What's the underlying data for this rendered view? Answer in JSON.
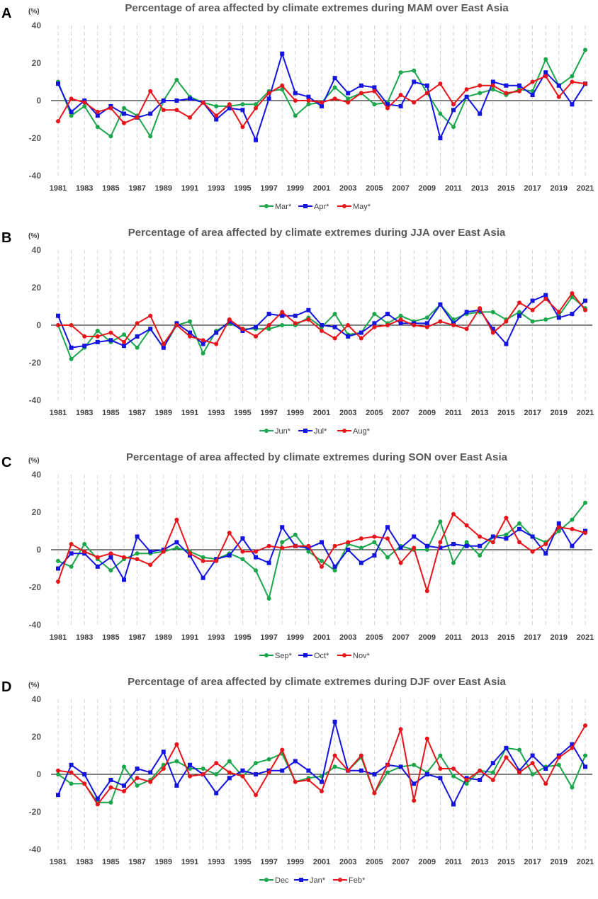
{
  "figure": {
    "years": [
      1981,
      1982,
      1983,
      1984,
      1985,
      1986,
      1987,
      1988,
      1989,
      1990,
      1991,
      1992,
      1993,
      1994,
      1995,
      1996,
      1997,
      1998,
      1999,
      2000,
      2001,
      2002,
      2003,
      2004,
      2005,
      2006,
      2007,
      2008,
      2009,
      2010,
      2011,
      2012,
      2013,
      2014,
      2015,
      2016,
      2017,
      2018,
      2019,
      2020,
      2021
    ],
    "x_tick_labels": [
      "1981",
      "1983",
      "1985",
      "1987",
      "1989",
      "1991",
      "1993",
      "1995",
      "1997",
      "1999",
      "2001",
      "2003",
      "2005",
      "2007",
      "2009",
      "2011",
      "2013",
      "2015",
      "2017",
      "2019",
      "2021"
    ],
    "y_tick_labels": [
      "40",
      "20",
      "0",
      "-20",
      "-40"
    ],
    "y_unit": "(%)",
    "ylim": [
      -40,
      40
    ]
  },
  "colors": {
    "green": "#1aa64b",
    "blue": "#1414e0",
    "red": "#e8141a",
    "axis": "#000000",
    "text": "#595959"
  },
  "chart_data": [
    {
      "type": "line",
      "panel": "A",
      "title": "Percentage of area affected by climate extremes during MAM over East Asia",
      "ylabel": "(%)",
      "xlabel": "",
      "ylim": [
        -40,
        40
      ],
      "series": [
        {
          "name": "Mar",
          "marker": "*",
          "color": "#1aa64b",
          "shape": "circle",
          "values": [
            10,
            -8,
            -3,
            -14,
            -19,
            -4,
            -8,
            -19,
            0,
            11,
            2,
            -1,
            -3,
            -3,
            -2,
            -2,
            5,
            6,
            -8,
            -2,
            -1,
            7,
            1,
            4,
            -2,
            -1,
            15,
            16,
            4,
            -7,
            -14,
            2,
            4,
            6,
            3,
            6,
            5,
            22,
            8,
            13,
            27
          ]
        },
        {
          "name": "Apr",
          "marker": "*",
          "color": "#1414e0",
          "shape": "square",
          "values": [
            9,
            -6,
            0,
            -8,
            -3,
            -7,
            -9,
            -7,
            0,
            0,
            1,
            -1,
            -10,
            -4,
            -5,
            -21,
            1,
            25,
            4,
            2,
            -3,
            12,
            4,
            8,
            7,
            -2,
            -3,
            10,
            8,
            -20,
            -5,
            2,
            -7,
            10,
            8,
            8,
            3,
            15,
            8,
            -2,
            9
          ]
        },
        {
          "name": "May",
          "marker": "*",
          "color": "#e8141a",
          "shape": "circle",
          "values": [
            -11,
            1,
            -1,
            -6,
            -4,
            -12,
            -9,
            5,
            -5,
            -5,
            -9,
            -1,
            -8,
            -2,
            -14,
            -4,
            4,
            8,
            0,
            0,
            -1,
            1,
            -1,
            4,
            5,
            -4,
            3,
            -1,
            4,
            9,
            -2,
            6,
            8,
            8,
            4,
            5,
            10,
            13,
            2,
            10,
            9
          ]
        }
      ]
    },
    {
      "type": "line",
      "panel": "B",
      "title": "Percentage of area affected by climate extremes during JJA over East Asia",
      "ylabel": "(%)",
      "xlabel": "",
      "ylim": [
        -40,
        40
      ],
      "series": [
        {
          "name": "Jun",
          "marker": "*",
          "color": "#1aa64b",
          "shape": "circle",
          "values": [
            0,
            -18,
            -12,
            -3,
            -9,
            -5,
            -12,
            -2,
            -12,
            0,
            2,
            -15,
            -3,
            1,
            -2,
            -2,
            -2,
            0,
            0,
            4,
            -1,
            6,
            -5,
            -4,
            6,
            1,
            5,
            2,
            4,
            11,
            3,
            6,
            7,
            7,
            3,
            7,
            2,
            3,
            5,
            15,
            9
          ]
        },
        {
          "name": "Jul",
          "marker": "*",
          "color": "#1414e0",
          "shape": "square",
          "values": [
            5,
            -12,
            -11,
            -9,
            -8,
            -11,
            -6,
            -2,
            -12,
            1,
            -4,
            -10,
            -4,
            2,
            -3,
            -1,
            6,
            5,
            5,
            8,
            0,
            -1,
            -6,
            -4,
            1,
            6,
            1,
            1,
            1,
            11,
            1,
            7,
            8,
            -2,
            -10,
            5,
            13,
            16,
            4,
            6,
            13
          ]
        },
        {
          "name": "Aug",
          "marker": "*",
          "color": "#e8141a",
          "shape": "circle",
          "values": [
            0,
            0,
            -6,
            -6,
            -4,
            -9,
            1,
            5,
            -10,
            0,
            -6,
            -8,
            -10,
            3,
            -2,
            -6,
            0,
            7,
            1,
            3,
            -3,
            -7,
            0,
            -7,
            -1,
            0,
            3,
            0,
            -1,
            2,
            0,
            -2,
            9,
            -4,
            2,
            12,
            8,
            14,
            7,
            17,
            8
          ]
        }
      ]
    },
    {
      "type": "line",
      "panel": "C",
      "title": "Percentage of area affected by climate extremes during SON over East Asia",
      "ylabel": "(%)",
      "xlabel": "",
      "ylim": [
        -40,
        40
      ],
      "series": [
        {
          "name": "Sep",
          "marker": "*",
          "color": "#1aa64b",
          "shape": "circle",
          "values": [
            -6,
            -9,
            3,
            -5,
            -11,
            -5,
            -2,
            -2,
            -1,
            1,
            -1,
            -4,
            -5,
            -2,
            -5,
            -11,
            -26,
            4,
            8,
            -1,
            -6,
            -11,
            3,
            1,
            4,
            -4,
            2,
            0,
            0,
            15,
            -7,
            4,
            -3,
            7,
            8,
            14,
            7,
            4,
            10,
            16,
            25
          ]
        },
        {
          "name": "Oct",
          "marker": "*",
          "color": "#1414e0",
          "shape": "square",
          "values": [
            -10,
            -2,
            -2,
            -9,
            -4,
            -16,
            7,
            -1,
            0,
            4,
            -3,
            -15,
            -5,
            -3,
            6,
            -4,
            -7,
            12,
            2,
            1,
            4,
            -9,
            0,
            -7,
            -3,
            12,
            1,
            7,
            2,
            1,
            3,
            2,
            2,
            7,
            6,
            11,
            7,
            -2,
            14,
            2,
            10
          ]
        },
        {
          "name": "Nov",
          "marker": "*",
          "color": "#e8141a",
          "shape": "circle",
          "values": [
            -17,
            3,
            -1,
            -4,
            -2,
            -4,
            -5,
            -8,
            -1,
            16,
            -2,
            -6,
            -6,
            9,
            -1,
            -1,
            2,
            1,
            2,
            2,
            -9,
            2,
            4,
            6,
            7,
            6,
            -7,
            1,
            -22,
            4,
            19,
            13,
            7,
            4,
            17,
            4,
            -1,
            3,
            12,
            11,
            9
          ]
        }
      ]
    },
    {
      "type": "line",
      "panel": "D",
      "title": "Percentage of area affected by climate extremes during DJF over East Asia",
      "ylabel": "(%)",
      "xlabel": "",
      "ylim": [
        -40,
        40
      ],
      "series": [
        {
          "name": "Dec",
          "marker": "",
          "color": "#1aa64b",
          "shape": "circle",
          "values": [
            0,
            -5,
            -5,
            -15,
            -15,
            4,
            -6,
            -3,
            5,
            7,
            3,
            3,
            0,
            7,
            -1,
            6,
            8,
            11,
            -4,
            -2,
            -1,
            4,
            2,
            9,
            -10,
            1,
            4,
            5,
            1,
            10,
            -1,
            -5,
            2,
            1,
            14,
            13,
            0,
            4,
            5,
            -7,
            10
          ]
        },
        {
          "name": "Jan",
          "marker": "*",
          "color": "#1414e0",
          "shape": "square",
          "values": [
            -11,
            5,
            0,
            -13,
            -3,
            -6,
            3,
            1,
            12,
            -6,
            5,
            0,
            -10,
            -2,
            2,
            0,
            2,
            2,
            7,
            2,
            -4,
            28,
            2,
            2,
            0,
            5,
            4,
            -5,
            0,
            -2,
            -16,
            -2,
            -3,
            6,
            14,
            2,
            10,
            3,
            10,
            16,
            4
          ]
        },
        {
          "name": "Feb",
          "marker": "*",
          "color": "#e8141a",
          "shape": "circle",
          "values": [
            2,
            1,
            -5,
            -16,
            -7,
            -9,
            -2,
            -4,
            3,
            16,
            -1,
            0,
            6,
            1,
            -1,
            -11,
            1,
            13,
            -4,
            -3,
            -9,
            10,
            2,
            10,
            -10,
            5,
            24,
            -14,
            19,
            3,
            3,
            -3,
            2,
            -3,
            9,
            1,
            6,
            -5,
            9,
            14,
            26
          ]
        }
      ]
    }
  ]
}
